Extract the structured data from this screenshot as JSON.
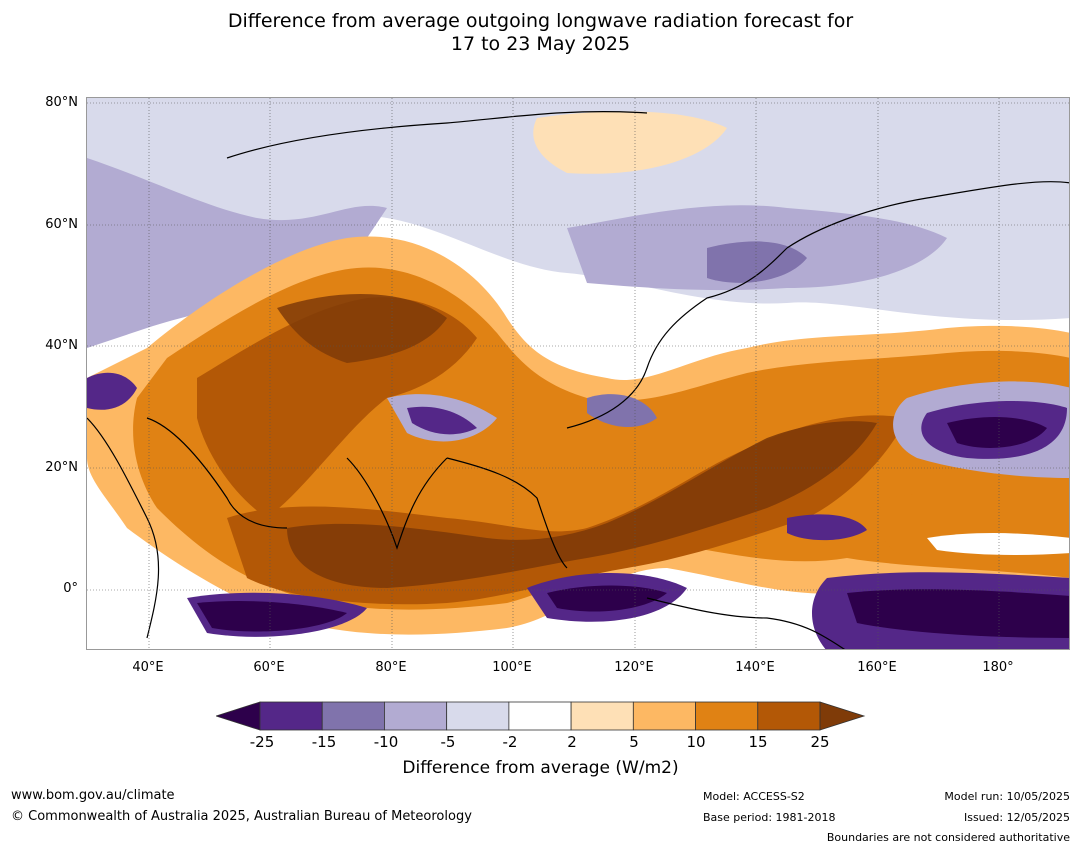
{
  "title_line1": "Difference from average outgoing longwave radiation forecast for",
  "title_line2": "17 to 23 May 2025",
  "lat_labels": [
    "80°N",
    "60°N",
    "40°N",
    "20°N",
    "0°"
  ],
  "lon_labels": [
    "40°E",
    "60°E",
    "80°E",
    "100°E",
    "120°E",
    "140°E",
    "160°E",
    "180°"
  ],
  "colorbar": {
    "ticks": [
      "-25",
      "-15",
      "-10",
      "-5",
      "-2",
      "2",
      "5",
      "10",
      "15",
      "25"
    ],
    "colors": [
      "#2d004b",
      "#542788",
      "#8073ac",
      "#b2abd2",
      "#d8daeb",
      "#ffffff",
      "#fee0b6",
      "#fdb863",
      "#e08214",
      "#b35806",
      "#7f3b08"
    ],
    "label": "Difference from average (W/m2)"
  },
  "footer": {
    "url": "www.bom.gov.au/climate",
    "copyright": "© Commonwealth of Australia 2025, Australian Bureau of Meteorology",
    "model": "Model: ACCESS-S2",
    "base_period": "Base period: 1981-2018",
    "model_run": "Model run: 10/05/2025",
    "issued": "Issued: 12/05/2025",
    "boundaries": "Boundaries are not considered authoritative"
  }
}
